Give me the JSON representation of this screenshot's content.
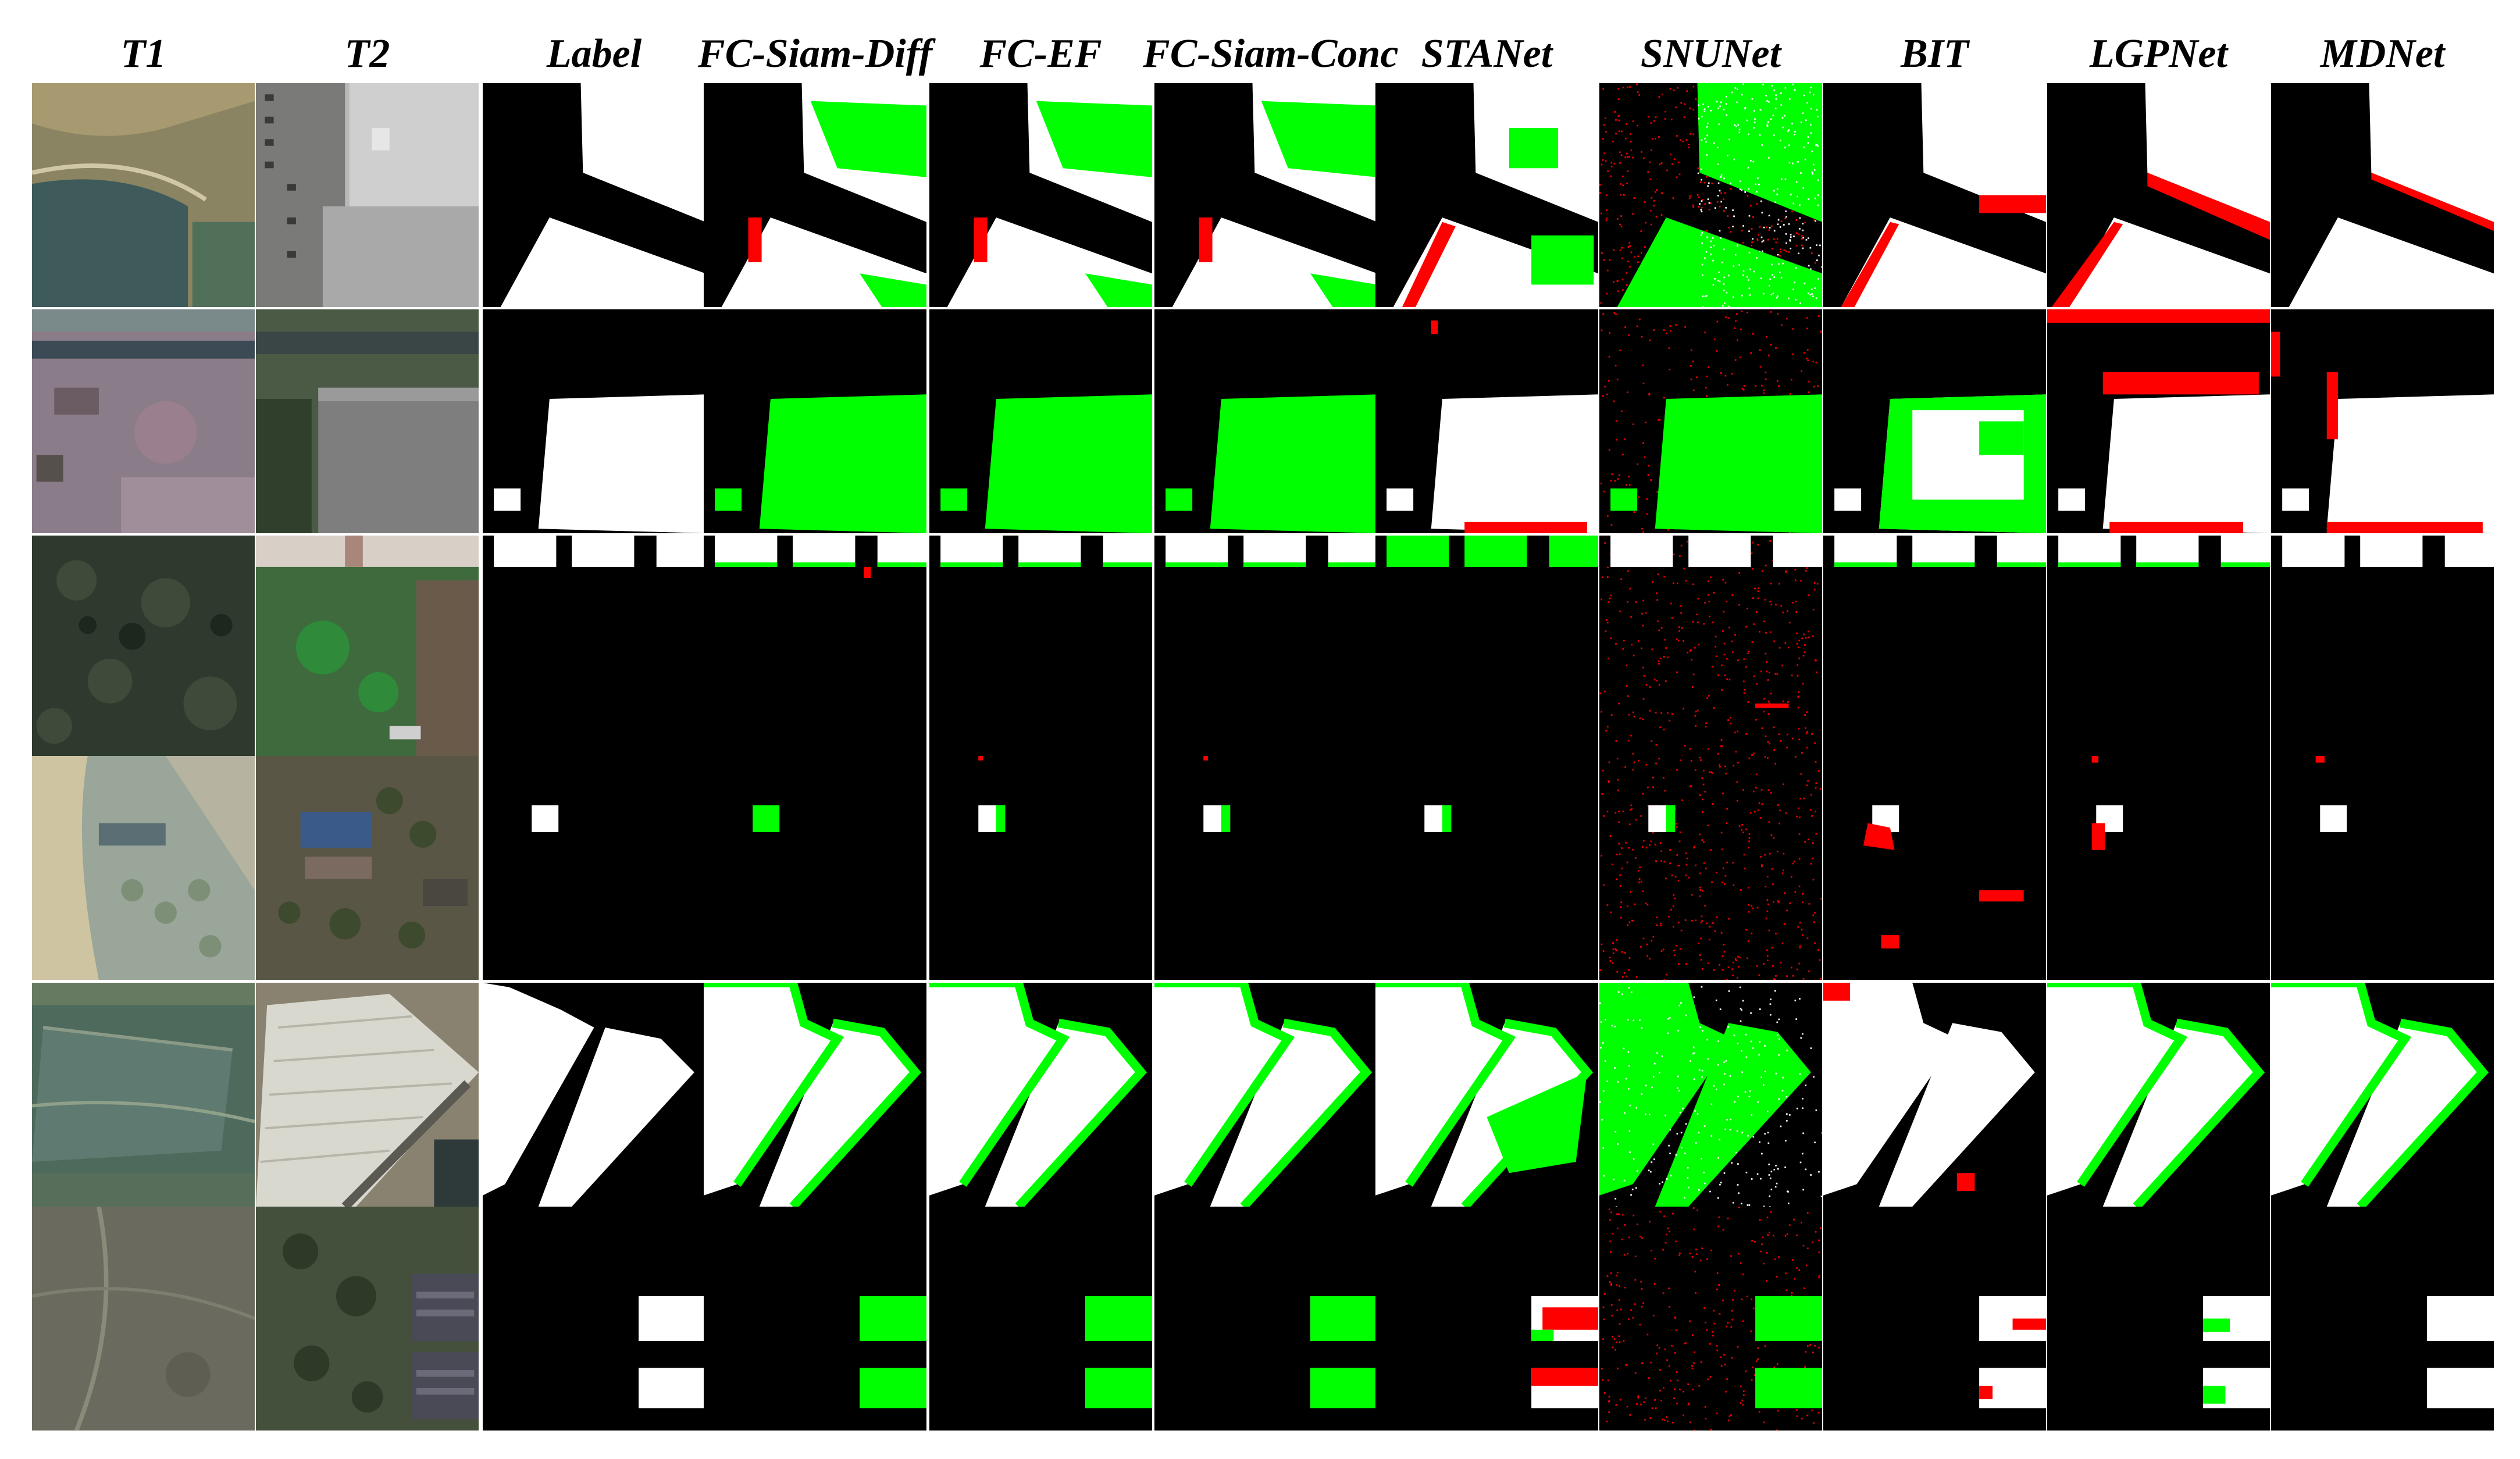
{
  "columns": [
    {
      "key": "t1",
      "label": "T1"
    },
    {
      "key": "t2",
      "label": "T2"
    },
    {
      "key": "label",
      "label": "Label"
    },
    {
      "key": "fc_siam_diff",
      "label": "FC-Siam-Diff"
    },
    {
      "key": "fc_ef",
      "label": "FC-EF"
    },
    {
      "key": "fc_siam_conc",
      "label": "FC-Siam-Conc"
    },
    {
      "key": "stanet",
      "label": "STANet"
    },
    {
      "key": "snunet",
      "label": "SNUNet"
    },
    {
      "key": "bit",
      "label": "BIT"
    },
    {
      "key": "lgpnet",
      "label": "LGPNet"
    },
    {
      "key": "mdnet",
      "label": "MDNet"
    }
  ],
  "row_count": 6,
  "legend_colors": {
    "true_positive": "#ffffff",
    "true_negative": "#000000",
    "false_positive": "#ff0000",
    "false_negative": "#00ff00"
  },
  "icons": {
    "photo_tile": "aerial-photo",
    "mask_tile": "change-mask"
  }
}
